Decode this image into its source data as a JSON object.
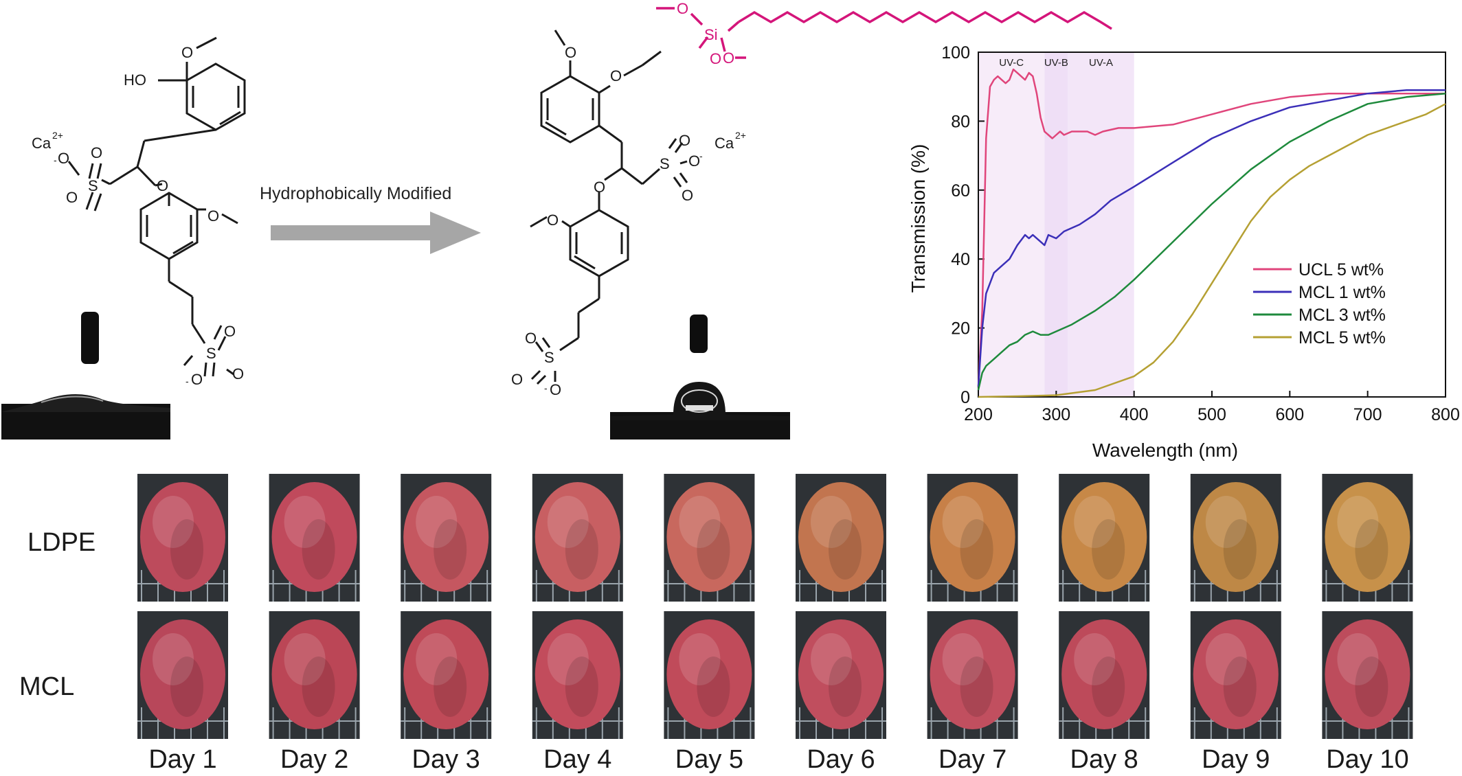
{
  "scheme": {
    "arrow_label": "Hydrophobically Modified",
    "left_molecule": {
      "calcium": "Ca",
      "calcium_charge": "2+",
      "hydroxyl": "HO",
      "sulfonate_oxygen": "O",
      "sulfur": "S",
      "sulfonate_anion": "O",
      "anion_charge": "-"
    },
    "right_molecule": {
      "calcium": "Ca",
      "calcium_charge": "2+",
      "silicon": "Si",
      "siloxy_oxygen": "O",
      "sulfonate_oxygen": "O",
      "sulfur": "S",
      "sulfonate_anion": "O",
      "anion_charge": "-"
    },
    "colors": {
      "silane_chain": "#d4157a",
      "arrow": "#a6a6a6"
    }
  },
  "chart_data": {
    "type": "line",
    "title": "",
    "xlabel": "Wavelength (nm)",
    "ylabel": "Transmission (%)",
    "xlim": [
      200,
      800
    ],
    "ylim": [
      0,
      100
    ],
    "xticks": [
      200,
      300,
      400,
      500,
      600,
      700,
      800
    ],
    "yticks": [
      0,
      20,
      40,
      60,
      80,
      100
    ],
    "legend_position": "center-right",
    "regions": [
      {
        "label": "UV-C",
        "x": [
          200,
          285
        ],
        "color": "#f7ecf9"
      },
      {
        "label": "UV-B",
        "x": [
          285,
          315
        ],
        "color": "#efdff6"
      },
      {
        "label": "UV-A",
        "x": [
          315,
          400
        ],
        "color": "#f3e6f8"
      }
    ],
    "series": [
      {
        "name": "UCL 5 wt%",
        "color": "#e0457b",
        "x": [
          200,
          205,
          210,
          215,
          220,
          225,
          230,
          235,
          240,
          245,
          250,
          255,
          260,
          265,
          270,
          275,
          280,
          285,
          290,
          295,
          300,
          305,
          310,
          320,
          330,
          340,
          350,
          360,
          380,
          400,
          450,
          500,
          550,
          600,
          650,
          700,
          750,
          800
        ],
        "values": [
          3,
          25,
          75,
          90,
          92,
          93,
          92,
          91,
          92,
          95,
          94,
          93,
          92,
          94,
          93,
          88,
          81,
          77,
          76,
          75,
          76,
          77,
          76,
          77,
          77,
          77,
          76,
          77,
          78,
          78,
          79,
          82,
          85,
          87,
          88,
          88,
          88,
          88
        ]
      },
      {
        "name": "MCL 1 wt%",
        "color": "#3b2fb8",
        "x": [
          200,
          205,
          210,
          220,
          230,
          240,
          250,
          260,
          265,
          270,
          280,
          285,
          290,
          300,
          310,
          330,
          350,
          370,
          400,
          450,
          500,
          550,
          600,
          650,
          700,
          750,
          800
        ],
        "values": [
          3,
          20,
          30,
          36,
          38,
          40,
          44,
          47,
          46,
          47,
          45,
          44,
          47,
          46,
          48,
          50,
          53,
          57,
          61,
          68,
          75,
          80,
          84,
          86,
          88,
          89,
          89
        ]
      },
      {
        "name": "MCL 3 wt%",
        "color": "#1e8a3c",
        "x": [
          200,
          205,
          210,
          220,
          230,
          240,
          250,
          260,
          270,
          280,
          290,
          300,
          320,
          350,
          375,
          400,
          450,
          500,
          550,
          600,
          650,
          700,
          750,
          800
        ],
        "values": [
          2,
          7,
          9,
          11,
          13,
          15,
          16,
          18,
          19,
          18,
          18,
          19,
          21,
          25,
          29,
          34,
          45,
          56,
          66,
          74,
          80,
          85,
          87,
          88
        ]
      },
      {
        "name": "MCL 5 wt%",
        "color": "#b5a033",
        "x": [
          200,
          250,
          300,
          350,
          400,
          425,
          450,
          475,
          500,
          525,
          550,
          575,
          600,
          625,
          650,
          675,
          700,
          725,
          750,
          775,
          800
        ],
        "values": [
          0,
          0.2,
          0.5,
          2,
          6,
          10,
          16,
          24,
          33,
          42,
          51,
          58,
          63,
          67,
          70,
          73,
          76,
          78,
          80,
          82,
          85
        ]
      }
    ]
  },
  "photo_grid": {
    "rows": [
      {
        "label": "LDPE",
        "tint": [
          "#bd4b5c",
          "#c04a5c",
          "#c55760",
          "#c85f62",
          "#c8685e",
          "#c2754f",
          "#c78048",
          "#c78847",
          "#be8846",
          "#c7914a"
        ]
      },
      {
        "label": "MCL",
        "tint": [
          "#b8475a",
          "#bb4656",
          "#bf4a58",
          "#c24c5c",
          "#c04b5a",
          "#c04e5e",
          "#c14f5f",
          "#bd4a5a",
          "#bf4d5d",
          "#bd4c5c"
        ]
      }
    ],
    "days": [
      "Day 1",
      "Day 2",
      "Day 3",
      "Day 4",
      "Day 5",
      "Day 6",
      "Day 7",
      "Day 8",
      "Day 9",
      "Day 10"
    ]
  }
}
